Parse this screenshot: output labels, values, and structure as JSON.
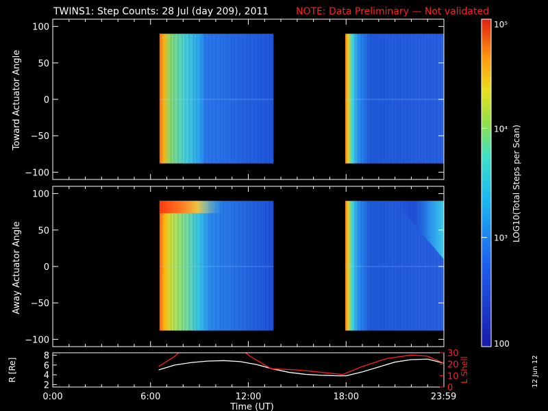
{
  "title": "TWINS1: Step Counts: 28 Jul (day 209), 2011",
  "note": "NOTE: Data Preliminary — Not validated",
  "side_date": "12 Jun 12",
  "colors": {
    "note": "#ff2020",
    "lshell": "#ff2020",
    "frame": "#ffffff"
  },
  "chart_data": [
    {
      "type": "heatmap",
      "name": "toward",
      "ylabel": "Toward Actuator Angle",
      "ylim": [
        -110,
        110
      ],
      "yticks": [
        "100",
        "50",
        "0",
        "−50",
        "−100"
      ],
      "ytick_values": [
        100,
        50,
        0,
        -50,
        -100
      ],
      "xlim_hours": [
        0,
        24
      ],
      "data_blocks": [
        {
          "start_hour": 6.55,
          "end_hour": 13.55,
          "angle_range": [
            -88,
            90
          ]
        },
        {
          "start_hour": 17.95,
          "end_hour": 24.0,
          "angle_range": [
            -88,
            90
          ]
        }
      ]
    },
    {
      "type": "heatmap",
      "name": "away",
      "ylabel": "Away Actuator Angle",
      "ylim": [
        -110,
        110
      ],
      "yticks": [
        "100",
        "50",
        "0",
        "−50",
        "−100"
      ],
      "ytick_values": [
        100,
        50,
        0,
        -50,
        -100
      ],
      "xlim_hours": [
        0,
        24
      ],
      "data_blocks": [
        {
          "start_hour": 6.55,
          "end_hour": 13.55,
          "angle_range": [
            -88,
            90
          ]
        },
        {
          "start_hour": 17.95,
          "end_hour": 24.0,
          "angle_range": [
            -88,
            90
          ]
        }
      ]
    },
    {
      "type": "line",
      "name": "orbit",
      "ylabel": "R [Re]",
      "y2label": "L Shell",
      "xlabel": "Time (UT)",
      "xticks": [
        "0:00",
        "6:00",
        "12:00",
        "18:00",
        "23:59"
      ],
      "xtick_hours": [
        0,
        6,
        12,
        18,
        23.98
      ],
      "ylim": [
        1.5,
        8.5
      ],
      "yticks": [
        "8",
        "6",
        "4",
        "2"
      ],
      "ytick_values": [
        8,
        6,
        4,
        2
      ],
      "y2lim": [
        0,
        30
      ],
      "y2ticks": [
        "30",
        "20",
        "10",
        "0"
      ],
      "y2tick_values": [
        30,
        20,
        10,
        0
      ],
      "series": [
        {
          "name": "R [Re]",
          "x": [
            6.5,
            7.5,
            8.5,
            9.5,
            10.5,
            11.5,
            12.5,
            13.5,
            14.5,
            15.5,
            16.5,
            17.5,
            18.0,
            19.0,
            20.0,
            21.0,
            22.0,
            23.0,
            23.98
          ],
          "y": [
            5.0,
            6.0,
            6.5,
            6.8,
            6.9,
            6.7,
            6.1,
            5.2,
            4.5,
            4.1,
            3.9,
            3.8,
            3.8,
            4.6,
            5.6,
            6.6,
            7.1,
            7.2,
            6.4
          ]
        },
        {
          "name": "L Shell",
          "x": [
            6.5,
            7.5,
            8.1,
            11.4,
            12.1,
            13.4,
            15.0,
            17.8,
            19.0,
            20.5,
            22.0,
            23.0,
            23.98
          ],
          "y": [
            18,
            27,
            35,
            35,
            27,
            16,
            15,
            11,
            18,
            25,
            28,
            27,
            21
          ]
        }
      ]
    }
  ],
  "colorbar": {
    "label": "LOG10(Total Steps per Scan)",
    "ticks": [
      "10⁵",
      "10⁴",
      "10³",
      "100"
    ],
    "tick_exponents": [
      5,
      4,
      3,
      2
    ]
  }
}
